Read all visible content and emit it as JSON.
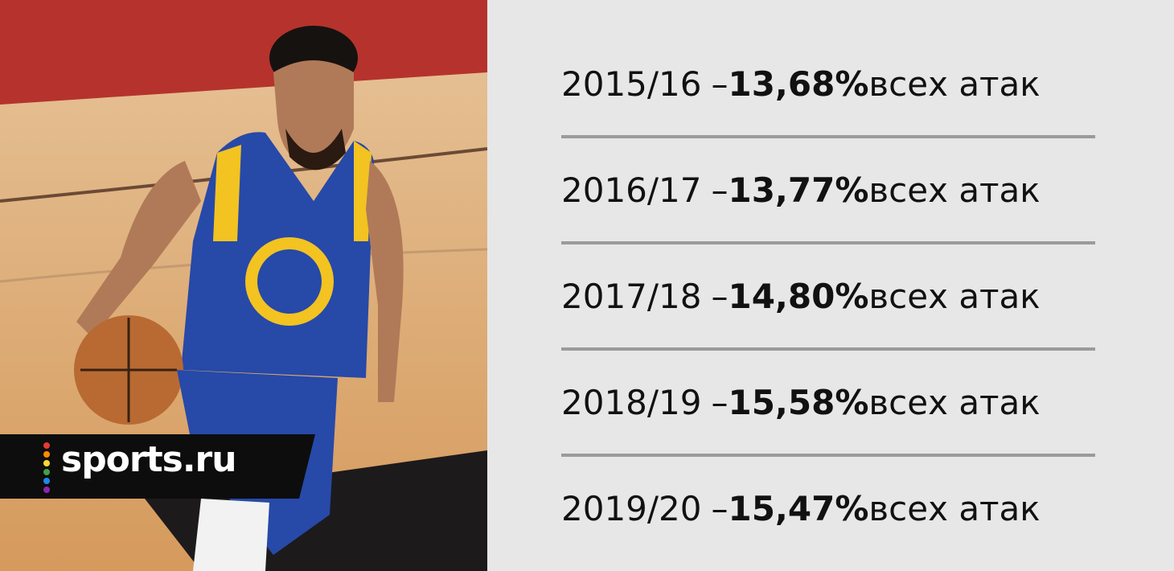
{
  "logo": {
    "text": "sports.ru"
  },
  "rows": [
    {
      "season": "2015/16",
      "separator": "–",
      "value": "13,68%",
      "suffix": "всех атак"
    },
    {
      "season": "2016/17",
      "separator": "–",
      "value": "13,77%",
      "suffix": "всех атак"
    },
    {
      "season": "2017/18",
      "separator": "–",
      "value": "14,80%",
      "suffix": "всех атак"
    },
    {
      "season": "2018/19",
      "separator": "–",
      "value": "15,58%",
      "suffix": "всех атак"
    },
    {
      "season": "2019/20",
      "separator": "–",
      "value": "15,47%",
      "suffix": "всех атак"
    }
  ]
}
